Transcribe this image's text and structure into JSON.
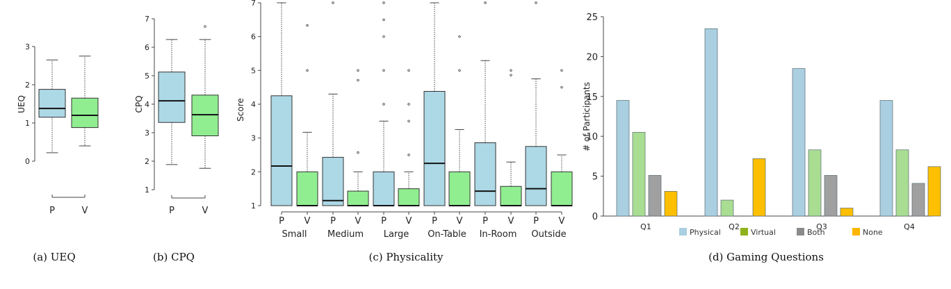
{
  "colors": {
    "physical_box": "#add8e6",
    "virtual_box": "#90ee90",
    "physical_bar": "#a9cfe0",
    "virtual_bar": "#a8dd92",
    "both_bar": "#a0a0a0",
    "none_bar": "#fdbf00",
    "virtual_legend": "#8fb21c",
    "both_legend": "#8a8a8a",
    "none_legend": "#ffb400"
  },
  "chart_data": [
    {
      "id": "a",
      "type": "boxplot",
      "caption": "(a)  UEQ",
      "ylabel": "UEQ",
      "ylim": [
        0,
        3
      ],
      "yticks": [
        "0",
        "1",
        "2",
        "3"
      ],
      "categories": [
        "P",
        "V"
      ],
      "boxes": [
        {
          "label": "P",
          "min": 0.22,
          "q1": 1.15,
          "median": 1.38,
          "q3": 1.88,
          "max": 2.65,
          "outliers": []
        },
        {
          "label": "V",
          "min": 0.4,
          "q1": 0.88,
          "median": 1.2,
          "q3": 1.65,
          "max": 2.75,
          "outliers": []
        }
      ]
    },
    {
      "id": "b",
      "type": "boxplot",
      "caption": "(b)  CPQ",
      "ylabel": "CPQ",
      "ylim": [
        1,
        7
      ],
      "yticks": [
        "1",
        "2",
        "3",
        "4",
        "5",
        "6",
        "7"
      ],
      "categories": [
        "P",
        "V"
      ],
      "boxes": [
        {
          "label": "P",
          "min": 1.88,
          "q1": 3.36,
          "median": 4.12,
          "q3": 5.13,
          "max": 6.27,
          "outliers": []
        },
        {
          "label": "V",
          "min": 1.75,
          "q1": 2.89,
          "median": 3.63,
          "q3": 4.32,
          "max": 6.27,
          "outliers": [
            6.73
          ]
        }
      ]
    },
    {
      "id": "c",
      "type": "boxplot",
      "caption": "(c)  Physicality",
      "ylabel": "Score",
      "ylim": [
        1,
        7
      ],
      "yticks": [
        "1",
        "2",
        "3",
        "4",
        "5",
        "6",
        "7"
      ],
      "categories": [
        "Small",
        "Medium",
        "Large",
        "On-Table",
        "In-Room",
        "Outside"
      ],
      "sublabels": [
        "P",
        "V"
      ],
      "boxes": [
        {
          "group": "Small",
          "label": "P",
          "min": 1,
          "q1": 1,
          "median": 2.17,
          "q3": 4.25,
          "max": 7,
          "outliers": []
        },
        {
          "group": "Small",
          "label": "V",
          "min": 1,
          "q1": 1,
          "median": 1,
          "q3": 2,
          "max": 3.17,
          "outliers": [
            5,
            6.33
          ]
        },
        {
          "group": "Medium",
          "label": "P",
          "min": 1,
          "q1": 1,
          "median": 1.15,
          "q3": 2.43,
          "max": 4.3,
          "outliers": [
            7
          ]
        },
        {
          "group": "Medium",
          "label": "V",
          "min": 1,
          "q1": 1,
          "median": 1,
          "q3": 1.43,
          "max": 2,
          "outliers": [
            2.57,
            4.71,
            5
          ]
        },
        {
          "group": "Large",
          "label": "P",
          "min": 1,
          "q1": 1,
          "median": 1,
          "q3": 2,
          "max": 3.5,
          "outliers": [
            4,
            5,
            6,
            6.5,
            7
          ]
        },
        {
          "group": "Large",
          "label": "V",
          "min": 1,
          "q1": 1,
          "median": 1,
          "q3": 1.5,
          "max": 2,
          "outliers": [
            2.5,
            3.5,
            4,
            5
          ]
        },
        {
          "group": "On-Table",
          "label": "P",
          "min": 1,
          "q1": 1,
          "median": 2.25,
          "q3": 4.38,
          "max": 7,
          "outliers": []
        },
        {
          "group": "On-Table",
          "label": "V",
          "min": 1,
          "q1": 1,
          "median": 1,
          "q3": 2,
          "max": 3.25,
          "outliers": [
            5,
            6
          ]
        },
        {
          "group": "In-Room",
          "label": "P",
          "min": 1,
          "q1": 1,
          "median": 1.43,
          "q3": 2.86,
          "max": 5.29,
          "outliers": [
            7
          ]
        },
        {
          "group": "In-Room",
          "label": "V",
          "min": 1,
          "q1": 1,
          "median": 1,
          "q3": 1.57,
          "max": 2.29,
          "outliers": [
            4.86,
            5
          ]
        },
        {
          "group": "Outside",
          "label": "P",
          "min": 1,
          "q1": 1,
          "median": 1.5,
          "q3": 2.75,
          "max": 4.75,
          "outliers": [
            7
          ]
        },
        {
          "group": "Outside",
          "label": "V",
          "min": 1,
          "q1": 1,
          "median": 1,
          "q3": 2,
          "max": 2.5,
          "outliers": [
            4.5,
            5
          ]
        }
      ]
    },
    {
      "id": "d",
      "type": "bar",
      "caption": "(d)  Gaming Questions",
      "ylabel": "# of Participants",
      "ylim": [
        0,
        25
      ],
      "yticks": [
        "0",
        "5",
        "10",
        "15",
        "20",
        "25"
      ],
      "categories": [
        "Q1",
        "Q2",
        "Q3",
        "Q4"
      ],
      "legend_position": "bottom",
      "series": [
        {
          "name": "Physical",
          "values": [
            14.5,
            23.5,
            18.5,
            14.5
          ]
        },
        {
          "name": "Virtual",
          "values": [
            10.5,
            2,
            8.3,
            8.3
          ]
        },
        {
          "name": "Both",
          "values": [
            5.1,
            0,
            5.1,
            4.1
          ]
        },
        {
          "name": "None",
          "values": [
            3.1,
            7.2,
            1,
            6.2
          ]
        }
      ]
    }
  ]
}
